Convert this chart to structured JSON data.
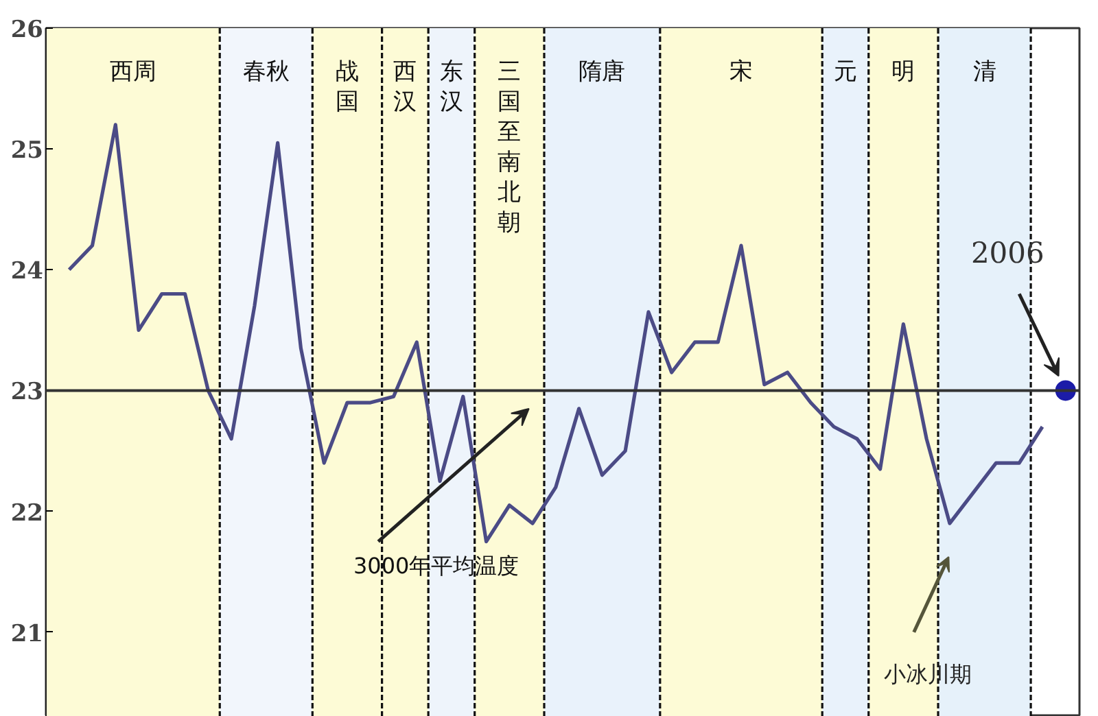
{
  "chart_data": {
    "type": "line",
    "ylim": [
      20.3,
      26
    ],
    "yticks": [
      21,
      22,
      23,
      24,
      25,
      26
    ],
    "tick_labels": "y",
    "grid": false,
    "marker": "none",
    "line_style": "solid",
    "categories": [
      null,
      null,
      null,
      null,
      null,
      null,
      null,
      null,
      null,
      null,
      null,
      null,
      null,
      null,
      null,
      null,
      null,
      null,
      null,
      null,
      null,
      null,
      null,
      null,
      null,
      null,
      null,
      null,
      null,
      null,
      null,
      null,
      null,
      null,
      null,
      null,
      null,
      null,
      null,
      null,
      null,
      null,
      null,
      null
    ],
    "series": [
      {
        "color": "#4b4b86",
        "values": [
          24.0,
          24.2,
          25.2,
          23.5,
          23.8,
          23.8,
          23.0,
          22.6,
          23.7,
          25.05,
          23.35,
          22.4,
          22.9,
          22.9,
          22.95,
          23.4,
          22.25,
          22.95,
          21.75,
          22.05,
          21.9,
          22.2,
          22.85,
          22.3,
          22.5,
          23.65,
          23.15,
          23.4,
          23.4,
          24.2,
          23.05,
          23.15,
          22.9,
          22.7,
          22.6,
          22.35,
          23.55,
          22.6,
          21.9,
          22.15,
          22.4,
          22.4,
          22.7,
          null
        ]
      },
      {
        "type": "scatter",
        "marker": "circle",
        "color": "#1c1ca8",
        "values": [
          null,
          null,
          null,
          null,
          null,
          null,
          null,
          null,
          null,
          null,
          null,
          null,
          null,
          null,
          null,
          null,
          null,
          null,
          null,
          null,
          null,
          null,
          null,
          null,
          null,
          null,
          null,
          null,
          null,
          null,
          null,
          null,
          null,
          null,
          null,
          null,
          null,
          null,
          null,
          null,
          null,
          null,
          null,
          23.0
        ]
      }
    ],
    "ref_lines": [
      {
        "axis": "y",
        "value": 23,
        "label": "3000年平均温度",
        "color": "#333333",
        "line_style": "solid"
      }
    ],
    "annotations": [
      "西周",
      "春秋",
      "战国",
      "西汉",
      "东汉",
      "三国至南北朝",
      "隋唐",
      "宋",
      "元",
      "明",
      "清",
      "2006",
      "小冰川期"
    ]
  }
}
